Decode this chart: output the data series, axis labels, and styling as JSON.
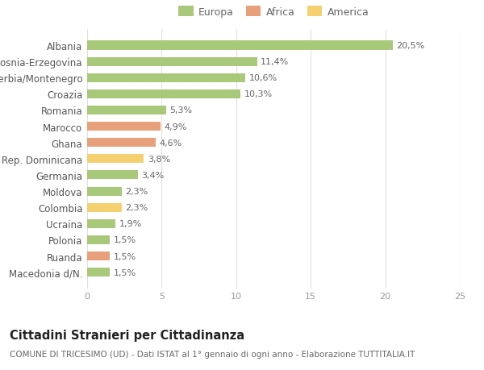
{
  "categories": [
    "Macedonia d/N.",
    "Ruanda",
    "Polonia",
    "Ucraina",
    "Colombia",
    "Moldova",
    "Germania",
    "Rep. Dominicana",
    "Ghana",
    "Marocco",
    "Romania",
    "Croazia",
    "Serbia/Montenegro",
    "Bosnia-Erzegovina",
    "Albania"
  ],
  "values": [
    1.5,
    1.5,
    1.5,
    1.9,
    2.3,
    2.3,
    3.4,
    3.8,
    4.6,
    4.9,
    5.3,
    10.3,
    10.6,
    11.4,
    20.5
  ],
  "labels": [
    "1,5%",
    "1,5%",
    "1,5%",
    "1,9%",
    "2,3%",
    "2,3%",
    "3,4%",
    "3,8%",
    "4,6%",
    "4,9%",
    "5,3%",
    "10,3%",
    "10,6%",
    "11,4%",
    "20,5%"
  ],
  "colors": [
    "#a8c87a",
    "#e8a07a",
    "#a8c87a",
    "#a8c87a",
    "#f5d070",
    "#a8c87a",
    "#a8c87a",
    "#f5d070",
    "#e8a07a",
    "#e8a07a",
    "#a8c87a",
    "#a8c87a",
    "#a8c87a",
    "#a8c87a",
    "#a8c87a"
  ],
  "legend": [
    {
      "label": "Europa",
      "color": "#a8c87a"
    },
    {
      "label": "Africa",
      "color": "#e8a07a"
    },
    {
      "label": "America",
      "color": "#f5d070"
    }
  ],
  "xlim": [
    0,
    25
  ],
  "xticks": [
    0,
    5,
    10,
    15,
    20,
    25
  ],
  "title": "Cittadini Stranieri per Cittadinanza",
  "subtitle": "COMUNE DI TRICESIMO (UD) - Dati ISTAT al 1° gennaio di ogni anno - Elaborazione TUTTITALIA.IT",
  "bg_color": "#ffffff",
  "grid_color": "#e0e0e0",
  "label_fontsize": 8.0,
  "tick_fontsize": 8.0,
  "ytick_fontsize": 8.5,
  "title_fontsize": 10.5,
  "subtitle_fontsize": 7.5,
  "bar_height": 0.55
}
